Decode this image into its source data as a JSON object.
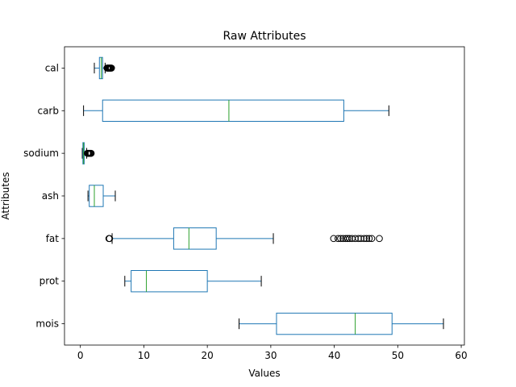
{
  "chart_data": {
    "type": "boxplot",
    "orientation": "horizontal",
    "title": "Raw Attributes",
    "xlabel": "Values",
    "ylabel": "Attributes",
    "xlim": [
      -2.5,
      60.5
    ],
    "xticks": [
      0,
      10,
      20,
      30,
      40,
      50,
      60
    ],
    "grid": false,
    "colors": {
      "box": "#1f77b4",
      "median": "#2ca02c",
      "whisker": "#000000",
      "flier": "#000000"
    },
    "categories": [
      "mois",
      "prot",
      "fat",
      "ash",
      "sodium",
      "carb",
      "cal"
    ],
    "boxes": [
      {
        "name": "mois",
        "whislo": 25.0,
        "q1": 30.9,
        "med": 43.3,
        "q3": 49.1,
        "whishi": 57.2,
        "fliers": []
      },
      {
        "name": "prot",
        "whislo": 7.0,
        "q1": 8.0,
        "med": 10.4,
        "q3": 20.0,
        "whishi": 28.5,
        "fliers": []
      },
      {
        "name": "fat",
        "whislo": 5.0,
        "q1": 14.7,
        "med": 17.1,
        "q3": 21.4,
        "whishi": 30.4,
        "fliers": [
          4.5,
          4.6,
          39.9,
          40.6,
          41.0,
          41.4,
          41.8,
          42.1,
          42.4,
          42.8,
          43.3,
          43.8,
          44.2,
          44.7,
          45.1,
          45.5,
          45.9,
          47.1
        ]
      },
      {
        "name": "ash",
        "whislo": 1.2,
        "q1": 1.4,
        "med": 2.2,
        "q3": 3.6,
        "whishi": 5.5,
        "fliers": []
      },
      {
        "name": "sodium",
        "whislo": 0.3,
        "q1": 0.4,
        "med": 0.5,
        "q3": 0.6,
        "whishi": 1.0,
        "fliers": [
          1.1,
          1.2,
          1.3,
          1.4,
          1.5,
          1.6,
          1.7
        ]
      },
      {
        "name": "carb",
        "whislo": 0.5,
        "q1": 3.5,
        "med": 23.4,
        "q3": 41.5,
        "whishi": 48.6,
        "fliers": []
      },
      {
        "name": "cal",
        "whislo": 2.2,
        "q1": 3.0,
        "med": 3.3,
        "q3": 3.5,
        "whishi": 3.9,
        "fliers": [
          4.2,
          4.3,
          4.4,
          4.5,
          4.6,
          4.7,
          4.8,
          4.9
        ]
      }
    ]
  }
}
